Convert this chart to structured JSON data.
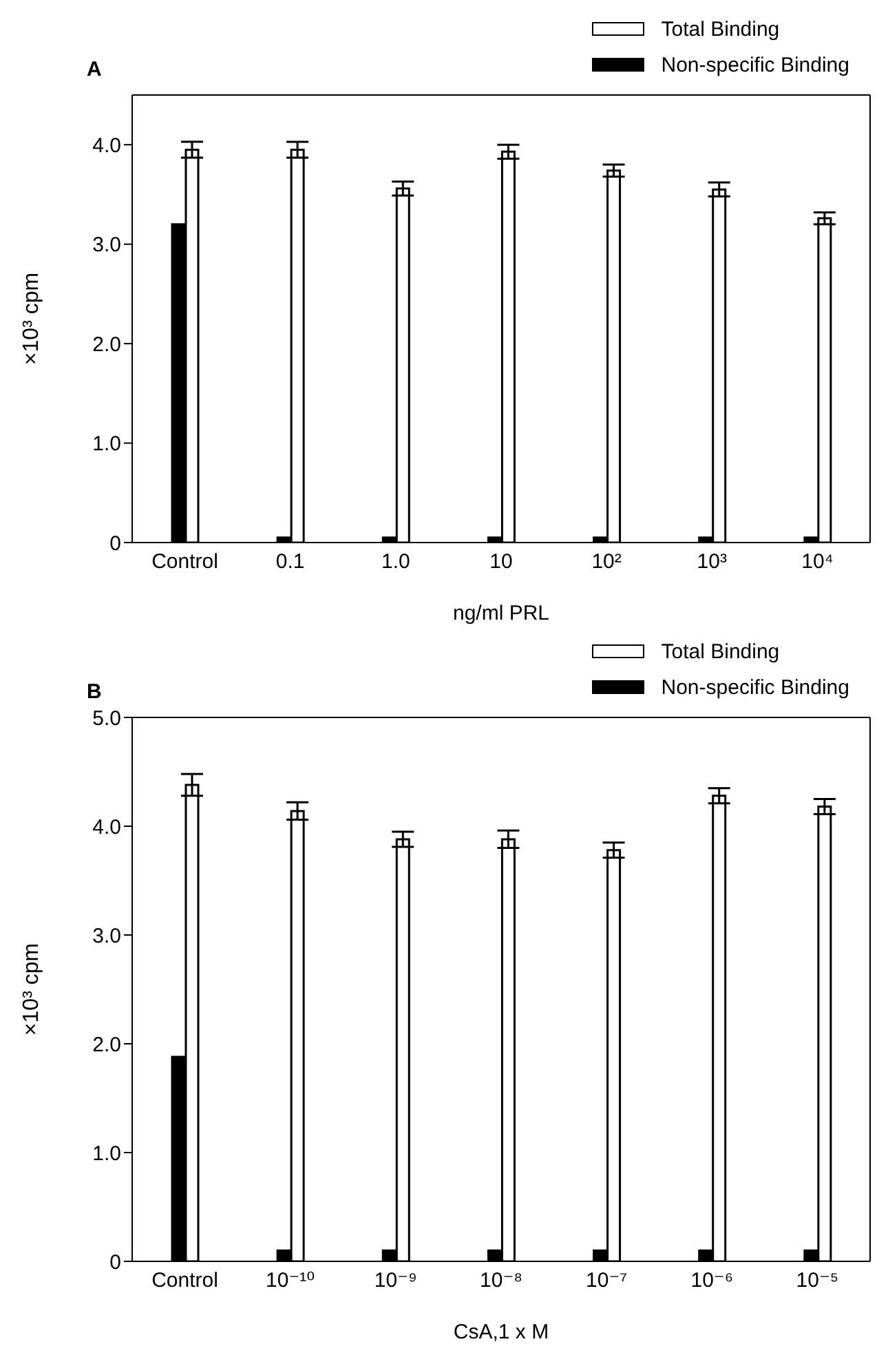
{
  "chart_data": [
    {
      "type": "bar",
      "title": "A",
      "xlabel": "ng/ml PRL",
      "ylabel": "×10³ cpm",
      "categories": [
        "Control",
        "0.1",
        "1.0",
        "10",
        "10²",
        "10³",
        "10⁴"
      ],
      "series": [
        {
          "name": "Total Binding",
          "color": "#ffffff",
          "values": [
            3.95,
            3.95,
            3.56,
            3.93,
            3.74,
            3.55,
            3.26
          ],
          "errors": [
            0.08,
            0.08,
            0.07,
            0.07,
            0.06,
            0.07,
            0.06
          ]
        },
        {
          "name": "Non-specific Binding",
          "color": "#000000",
          "values": [
            3.2,
            0.05,
            0.05,
            0.05,
            0.05,
            0.05,
            0.05
          ]
        }
      ],
      "ylim": [
        0,
        4.5
      ],
      "yticks": [
        0,
        {
          "value": 1,
          "label": "1.0"
        },
        {
          "value": 2,
          "label": "2.0"
        },
        {
          "value": 3,
          "label": "3.0"
        },
        {
          "value": 4,
          "label": "4.0"
        }
      ],
      "grid": false,
      "legend": "top right"
    },
    {
      "type": "bar",
      "title": "B",
      "xlabel": "CsA,1 x M",
      "ylabel": "×10³ cpm",
      "categories": [
        "Control",
        "10⁻¹⁰",
        "10⁻⁹",
        "10⁻⁸",
        "10⁻⁷",
        "10⁻⁶",
        "10⁻⁵"
      ],
      "series": [
        {
          "name": "Total Binding",
          "color": "#ffffff",
          "values": [
            4.38,
            4.14,
            3.88,
            3.88,
            3.78,
            4.28,
            4.18
          ],
          "errors": [
            0.1,
            0.08,
            0.07,
            0.08,
            0.07,
            0.07,
            0.07
          ]
        },
        {
          "name": "Non-specific Binding",
          "color": "#000000",
          "values": [
            1.88,
            0.1,
            0.1,
            0.1,
            0.1,
            0.1,
            0.1
          ]
        }
      ],
      "ylim": [
        0,
        5.0
      ],
      "yticks": [
        0,
        {
          "value": 1,
          "label": "1.0"
        },
        {
          "value": 2,
          "label": "2.0"
        },
        {
          "value": 3,
          "label": "3.0"
        },
        {
          "value": 4,
          "label": "4.0"
        },
        {
          "value": 5,
          "label": "5.0"
        }
      ],
      "grid": false,
      "legend": "top right"
    }
  ]
}
